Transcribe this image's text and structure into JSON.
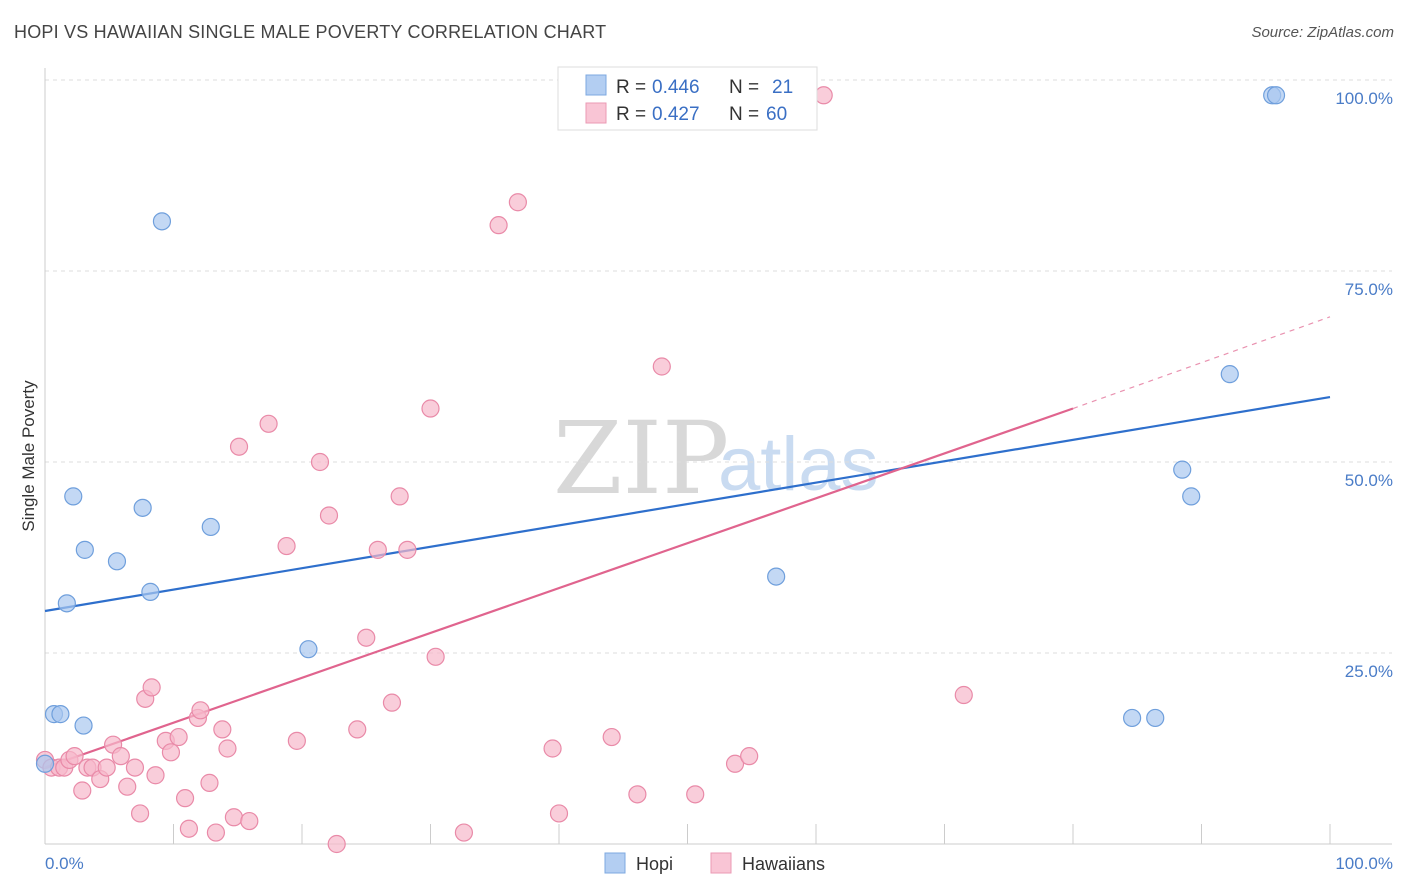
{
  "title": "HOPI VS HAWAIIAN SINGLE MALE POVERTY CORRELATION CHART",
  "source": "Source: ZipAtlas.com",
  "watermark": {
    "zip": "ZIP",
    "atlas": "atlas"
  },
  "colors": {
    "hopi": "#a9c8f0",
    "hopi_stroke": "#6f9fdc",
    "hopi_line": "#2e6fcc",
    "hawaiians": "#f7b8cb",
    "hawaiians_stroke": "#e98aa8",
    "hawaiians_line": "#e0648e",
    "grid": "#dddddd",
    "tick_label": "#4a7cc7"
  },
  "legend": {
    "rows": [
      {
        "r_label": "R =",
        "r_value": "0.446",
        "n_label": "N =",
        "n_value": "21"
      },
      {
        "r_label": "R =",
        "r_value": "0.427",
        "n_label": "N =",
        "n_value": "60"
      }
    ]
  },
  "bottom_legend": {
    "hopi": "Hopi",
    "hawaiians": "Hawaiians"
  },
  "chart_data": {
    "type": "scatter",
    "title": "HOPI VS HAWAIIAN SINGLE MALE POVERTY CORRELATION CHART",
    "xlabel": "",
    "ylabel": "Single Male Poverty",
    "xlim": [
      0,
      100
    ],
    "ylim": [
      0,
      100
    ],
    "x_ticks": [
      "0.0%",
      "100.0%"
    ],
    "y_ticks": [
      {
        "value": 25,
        "label": "25.0%"
      },
      {
        "value": 50,
        "label": "50.0%"
      },
      {
        "value": 75,
        "label": "75.0%"
      },
      {
        "value": 100,
        "label": "100.0%"
      }
    ],
    "series": [
      {
        "name": "Hopi",
        "R": 0.446,
        "N": 21,
        "trend": {
          "x": [
            0,
            100
          ],
          "y": [
            30.5,
            58.5
          ]
        },
        "points": [
          {
            "x": 0,
            "y": 10.5
          },
          {
            "x": 0.7,
            "y": 17
          },
          {
            "x": 1.2,
            "y": 17
          },
          {
            "x": 1.7,
            "y": 31.5
          },
          {
            "x": 2.2,
            "y": 45.5
          },
          {
            "x": 3.0,
            "y": 15.5
          },
          {
            "x": 3.1,
            "y": 38.5
          },
          {
            "x": 5.6,
            "y": 37
          },
          {
            "x": 7.6,
            "y": 44
          },
          {
            "x": 8.2,
            "y": 33
          },
          {
            "x": 9.1,
            "y": 81.5
          },
          {
            "x": 12.9,
            "y": 41.5
          },
          {
            "x": 20.5,
            "y": 25.5
          },
          {
            "x": 56.9,
            "y": 35
          },
          {
            "x": 84.6,
            "y": 16.5
          },
          {
            "x": 86.4,
            "y": 16.5
          },
          {
            "x": 88.5,
            "y": 49
          },
          {
            "x": 89.2,
            "y": 45.5
          },
          {
            "x": 92.2,
            "y": 61.5
          },
          {
            "x": 95.5,
            "y": 98
          },
          {
            "x": 95.8,
            "y": 98
          }
        ]
      },
      {
        "name": "Hawaiians",
        "R": 0.427,
        "N": 60,
        "trend": {
          "x": [
            0,
            80
          ],
          "y": [
            10,
            57
          ]
        },
        "trend_extension": {
          "x": [
            80,
            100
          ],
          "y": [
            57,
            69
          ]
        },
        "points": [
          {
            "x": 0,
            "y": 11
          },
          {
            "x": 0.5,
            "y": 10
          },
          {
            "x": 1.1,
            "y": 10
          },
          {
            "x": 1.5,
            "y": 10
          },
          {
            "x": 1.9,
            "y": 11
          },
          {
            "x": 2.3,
            "y": 11.5
          },
          {
            "x": 2.9,
            "y": 7
          },
          {
            "x": 3.3,
            "y": 10
          },
          {
            "x": 3.7,
            "y": 10
          },
          {
            "x": 4.3,
            "y": 8.5
          },
          {
            "x": 4.8,
            "y": 10
          },
          {
            "x": 5.3,
            "y": 13
          },
          {
            "x": 5.9,
            "y": 11.5
          },
          {
            "x": 6.4,
            "y": 7.5
          },
          {
            "x": 7.0,
            "y": 10
          },
          {
            "x": 7.4,
            "y": 4
          },
          {
            "x": 7.8,
            "y": 19
          },
          {
            "x": 8.3,
            "y": 20.5
          },
          {
            "x": 8.6,
            "y": 9
          },
          {
            "x": 9.4,
            "y": 13.5
          },
          {
            "x": 9.8,
            "y": 12
          },
          {
            "x": 10.4,
            "y": 14
          },
          {
            "x": 10.9,
            "y": 6
          },
          {
            "x": 11.2,
            "y": 2
          },
          {
            "x": 11.9,
            "y": 16.5
          },
          {
            "x": 12.1,
            "y": 17.5
          },
          {
            "x": 12.8,
            "y": 8
          },
          {
            "x": 13.3,
            "y": 1.5
          },
          {
            "x": 13.8,
            "y": 15
          },
          {
            "x": 14.2,
            "y": 12.5
          },
          {
            "x": 14.7,
            "y": 3.5
          },
          {
            "x": 15.1,
            "y": 52
          },
          {
            "x": 15.9,
            "y": 3
          },
          {
            "x": 17.4,
            "y": 55
          },
          {
            "x": 18.8,
            "y": 39
          },
          {
            "x": 19.6,
            "y": 13.5
          },
          {
            "x": 21.4,
            "y": 50
          },
          {
            "x": 22.1,
            "y": 43
          },
          {
            "x": 22.7,
            "y": 0
          },
          {
            "x": 24.3,
            "y": 15
          },
          {
            "x": 25.0,
            "y": 27
          },
          {
            "x": 25.9,
            "y": 38.5
          },
          {
            "x": 27.0,
            "y": 18.5
          },
          {
            "x": 27.6,
            "y": 45.5
          },
          {
            "x": 28.2,
            "y": 38.5
          },
          {
            "x": 30.0,
            "y": 57
          },
          {
            "x": 30.4,
            "y": 24.5
          },
          {
            "x": 32.6,
            "y": 1.5
          },
          {
            "x": 35.3,
            "y": 81
          },
          {
            "x": 36.8,
            "y": 84
          },
          {
            "x": 39.5,
            "y": 12.5
          },
          {
            "x": 40.0,
            "y": 4
          },
          {
            "x": 44.1,
            "y": 14
          },
          {
            "x": 46.1,
            "y": 6.5
          },
          {
            "x": 48.0,
            "y": 62.5
          },
          {
            "x": 50.6,
            "y": 6.5
          },
          {
            "x": 53.7,
            "y": 10.5
          },
          {
            "x": 54.8,
            "y": 11.5
          },
          {
            "x": 60.6,
            "y": 98
          },
          {
            "x": 71.5,
            "y": 19.5
          }
        ]
      }
    ]
  }
}
